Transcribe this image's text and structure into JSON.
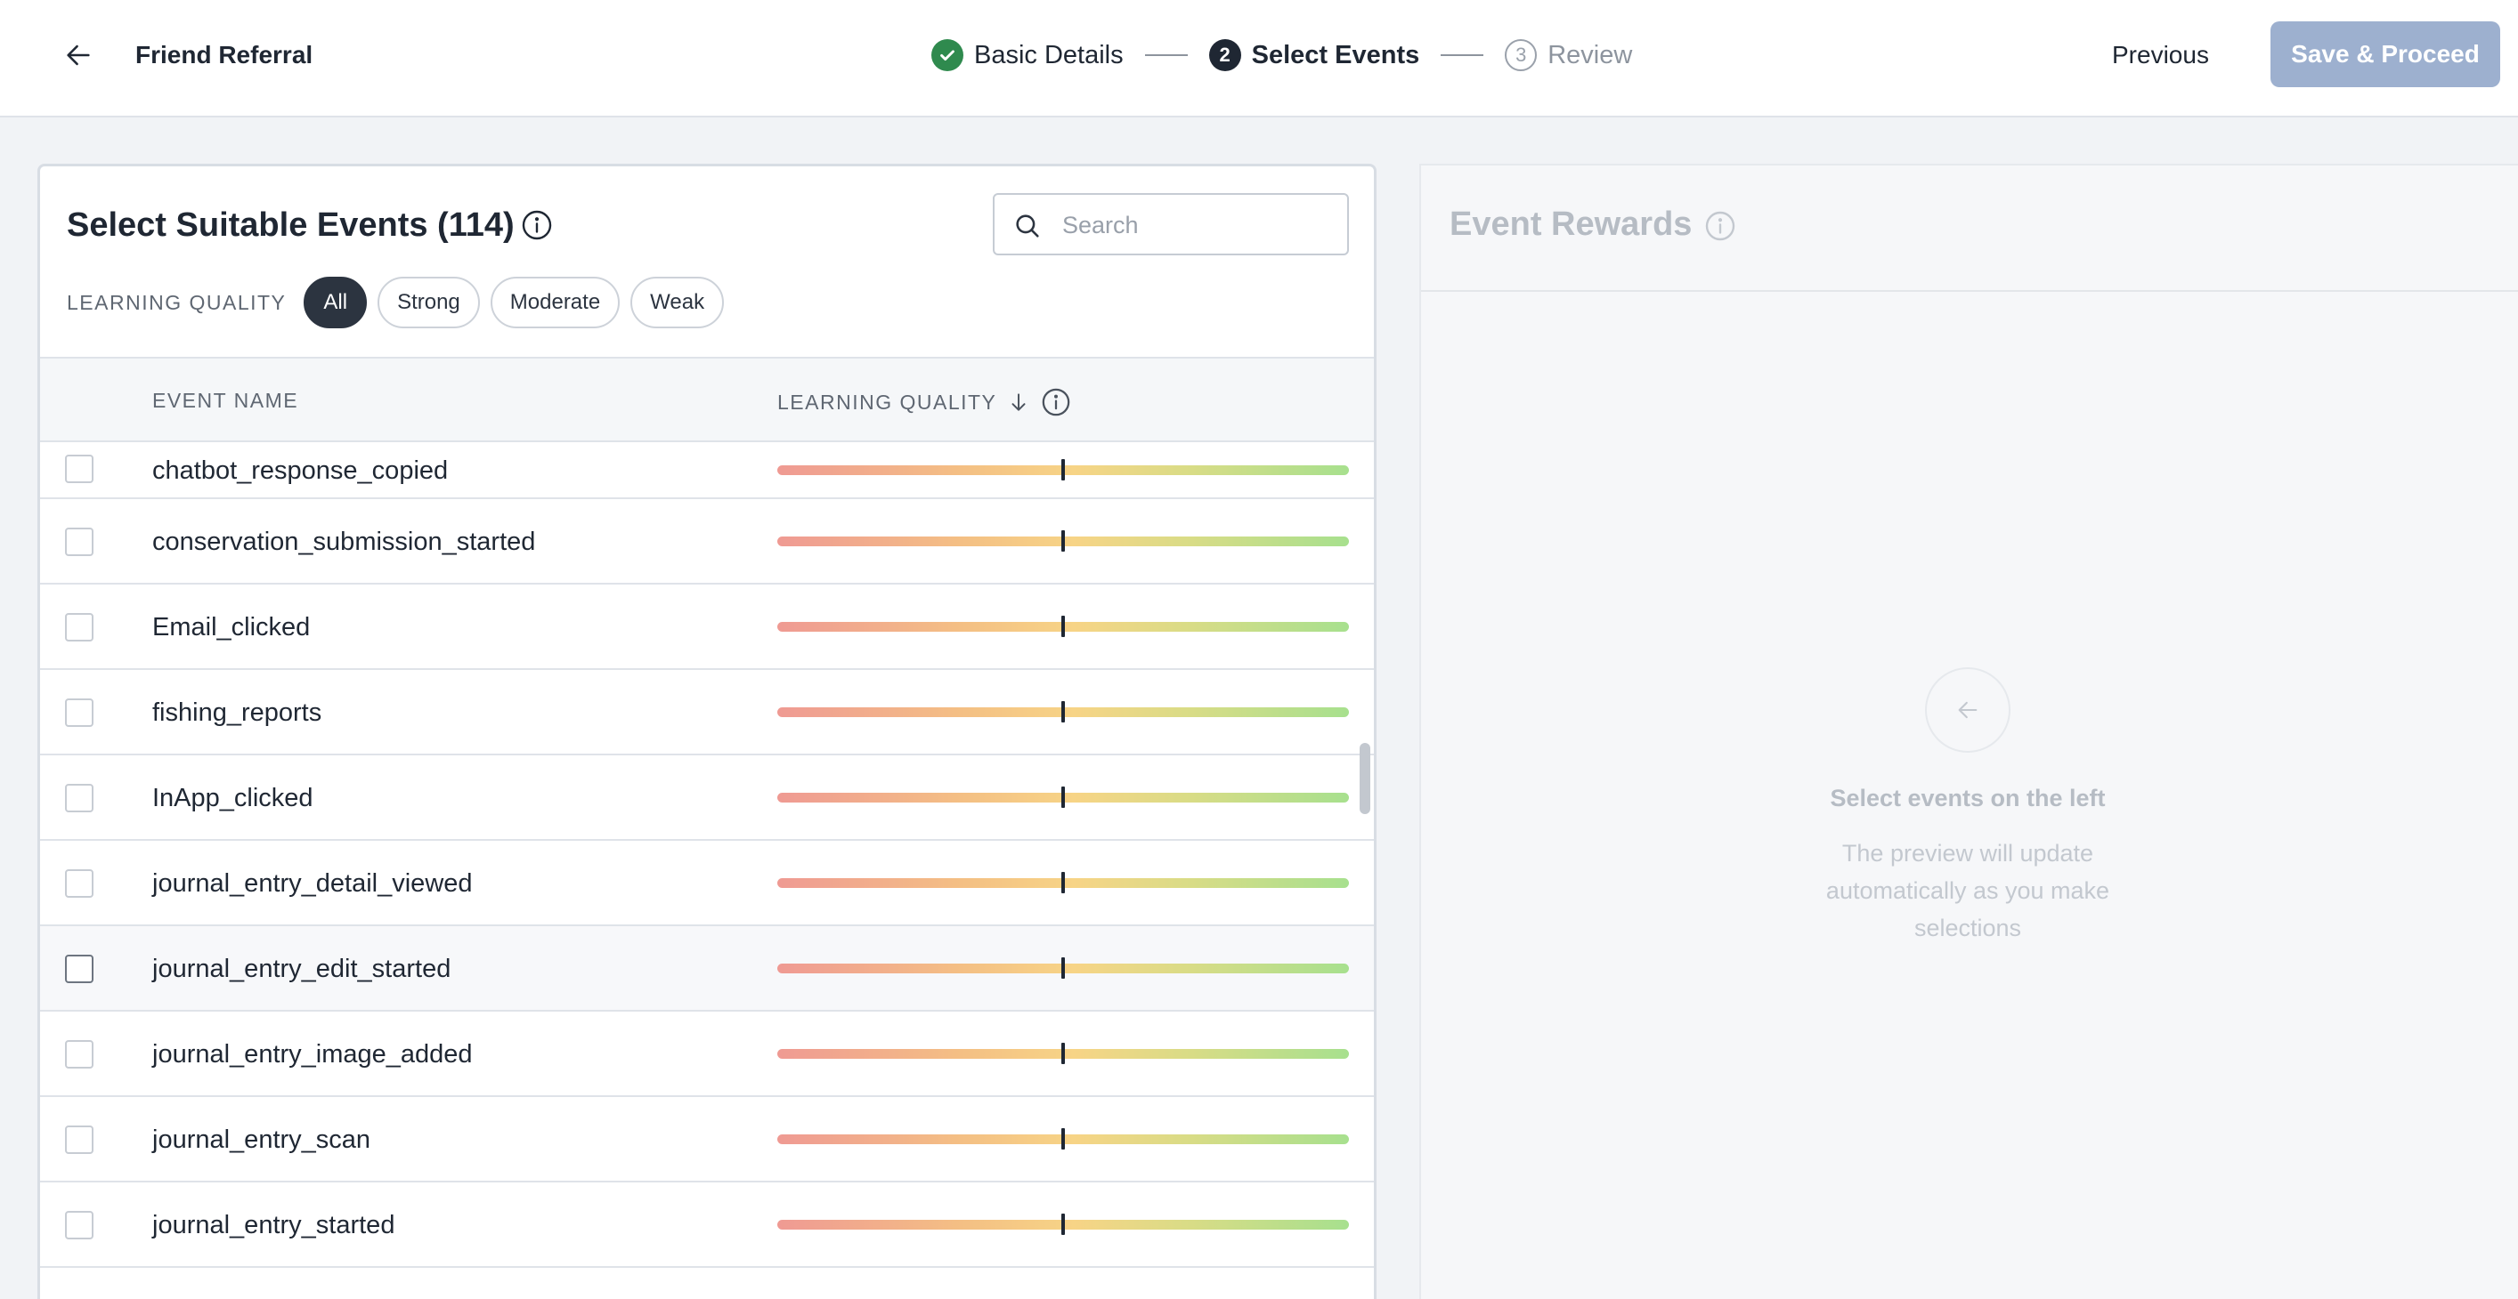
{
  "header": {
    "title": "Friend Referral",
    "steps": [
      {
        "number": "1",
        "label": "Basic Details",
        "status": "completed"
      },
      {
        "number": "2",
        "label": "Select Events",
        "status": "active"
      },
      {
        "number": "3",
        "label": "Review",
        "status": "upcoming"
      }
    ],
    "previous_label": "Previous",
    "save_label": "Save & Proceed"
  },
  "events_panel": {
    "title": "Select Suitable Events (114)",
    "search_placeholder": "Search",
    "filter_label": "LEARNING QUALITY",
    "filters": [
      "All",
      "Strong",
      "Moderate",
      "Weak"
    ],
    "active_filter": "All",
    "columns": {
      "event_name": "EVENT NAME",
      "learning_quality": "LEARNING QUALITY"
    },
    "sort": {
      "column": "learning_quality",
      "direction": "descending"
    },
    "rows": [
      {
        "name": "chatbot_response_copied",
        "quality": 0.5,
        "checked": false
      },
      {
        "name": "conservation_submission_started",
        "quality": 0.5,
        "checked": false
      },
      {
        "name": "Email_clicked",
        "quality": 0.5,
        "checked": false
      },
      {
        "name": "fishing_reports",
        "quality": 0.5,
        "checked": false
      },
      {
        "name": "InApp_clicked",
        "quality": 0.5,
        "checked": false
      },
      {
        "name": "journal_entry_detail_viewed",
        "quality": 0.5,
        "checked": false
      },
      {
        "name": "journal_entry_edit_started",
        "quality": 0.5,
        "checked": false
      },
      {
        "name": "journal_entry_image_added",
        "quality": 0.5,
        "checked": false
      },
      {
        "name": "journal_entry_scan",
        "quality": 0.5,
        "checked": false
      },
      {
        "name": "journal_entry_started",
        "quality": 0.5,
        "checked": false
      }
    ]
  },
  "rewards_panel": {
    "title": "Event Rewards",
    "empty_title": "Select events on the left",
    "empty_description": "The preview will update automatically as you make selections"
  },
  "colors": {
    "primary_dark": "#1f2733",
    "success": "#2f8a4e",
    "save_button_disabled": "#9db0cf",
    "quality_weak": "#ef9a93",
    "quality_moderate": "#f7d486",
    "quality_strong": "#a7e08e"
  },
  "icons": {
    "back": "arrow-left-icon",
    "step_done": "check-icon",
    "info": "info-icon",
    "search": "search-icon",
    "sort": "arrow-down-icon"
  }
}
